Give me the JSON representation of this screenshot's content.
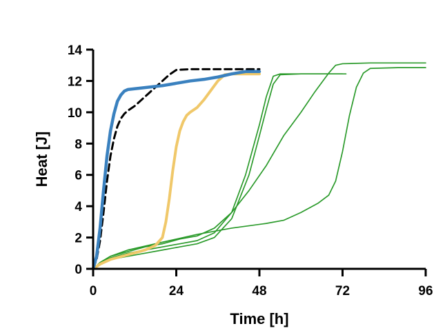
{
  "chart_data": {
    "type": "line",
    "title": "",
    "xlabel": "Time [h]",
    "ylabel": "Heat [J]",
    "xlim": [
      0,
      96
    ],
    "ylim": [
      0,
      14
    ],
    "xticks": [
      0,
      24,
      48,
      72,
      96
    ],
    "yticks": [
      0,
      2,
      4,
      6,
      8,
      10,
      12,
      14
    ],
    "grid": false,
    "legend": "none",
    "series": [
      {
        "color": "#000000",
        "style": "dashed",
        "points": [
          [
            0,
            0
          ],
          [
            1,
            0.6
          ],
          [
            2,
            1.8
          ],
          [
            3,
            3.6
          ],
          [
            4,
            5.6
          ],
          [
            5,
            7.2
          ],
          [
            6,
            8.3
          ],
          [
            7,
            9.1
          ],
          [
            8,
            9.6
          ],
          [
            9,
            9.9
          ],
          [
            10,
            10.1
          ],
          [
            12,
            10.4
          ],
          [
            14,
            10.8
          ],
          [
            16,
            11.2
          ],
          [
            18,
            11.6
          ],
          [
            20,
            12.0
          ],
          [
            22,
            12.4
          ],
          [
            24,
            12.7
          ],
          [
            28,
            12.75
          ],
          [
            36,
            12.75
          ],
          [
            44,
            12.75
          ],
          [
            48,
            12.75
          ]
        ]
      },
      {
        "color": "#3a81bf",
        "style": "solid",
        "points": [
          [
            0,
            0
          ],
          [
            1,
            0.8
          ],
          [
            2,
            2.6
          ],
          [
            3,
            5.0
          ],
          [
            4,
            7.2
          ],
          [
            5,
            8.8
          ],
          [
            6,
            9.9
          ],
          [
            7,
            10.7
          ],
          [
            8,
            11.1
          ],
          [
            9,
            11.35
          ],
          [
            10,
            11.45
          ],
          [
            12,
            11.5
          ],
          [
            16,
            11.6
          ],
          [
            20,
            11.7
          ],
          [
            24,
            11.85
          ],
          [
            28,
            12.0
          ],
          [
            32,
            12.1
          ],
          [
            36,
            12.25
          ],
          [
            40,
            12.45
          ],
          [
            44,
            12.6
          ],
          [
            48,
            12.6
          ]
        ]
      },
      {
        "color": "#f0c86a",
        "style": "solid",
        "points": [
          [
            0,
            0
          ],
          [
            2,
            0.3
          ],
          [
            5,
            0.6
          ],
          [
            10,
            0.9
          ],
          [
            15,
            1.2
          ],
          [
            18,
            1.5
          ],
          [
            20,
            2.0
          ],
          [
            21,
            3.0
          ],
          [
            22,
            4.5
          ],
          [
            23,
            6.3
          ],
          [
            24,
            7.8
          ],
          [
            25,
            8.8
          ],
          [
            26,
            9.4
          ],
          [
            27,
            9.8
          ],
          [
            28,
            10.0
          ],
          [
            30,
            10.3
          ],
          [
            32,
            10.8
          ],
          [
            34,
            11.4
          ],
          [
            36,
            12.0
          ],
          [
            38,
            12.4
          ],
          [
            40,
            12.45
          ],
          [
            48,
            12.45
          ]
        ]
      },
      {
        "color": "#2a9a2a",
        "style": "solid",
        "points": [
          [
            0,
            0
          ],
          [
            2,
            0.3
          ],
          [
            5,
            0.6
          ],
          [
            10,
            0.8
          ],
          [
            15,
            1.0
          ],
          [
            20,
            1.2
          ],
          [
            25,
            1.4
          ],
          [
            30,
            1.6
          ],
          [
            35,
            2.0
          ],
          [
            40,
            3.2
          ],
          [
            45,
            6.0
          ],
          [
            48,
            8.5
          ],
          [
            50,
            10.2
          ],
          [
            52,
            11.8
          ],
          [
            54,
            12.4
          ],
          [
            60,
            12.45
          ],
          [
            68,
            12.45
          ],
          [
            73,
            12.45
          ]
        ]
      },
      {
        "color": "#2a9a2a",
        "style": "solid",
        "points": [
          [
            0,
            0
          ],
          [
            2,
            0.4
          ],
          [
            5,
            0.7
          ],
          [
            10,
            1.0
          ],
          [
            15,
            1.2
          ],
          [
            20,
            1.4
          ],
          [
            25,
            1.6
          ],
          [
            30,
            1.8
          ],
          [
            35,
            2.3
          ],
          [
            40,
            3.6
          ],
          [
            44,
            6.0
          ],
          [
            48,
            9.2
          ],
          [
            50,
            11.0
          ],
          [
            52,
            12.3
          ],
          [
            54,
            12.45
          ],
          [
            60,
            12.45
          ],
          [
            68,
            12.45
          ],
          [
            72,
            12.45
          ]
        ]
      },
      {
        "color": "#2a9a2a",
        "style": "solid",
        "points": [
          [
            0,
            0
          ],
          [
            2,
            0.4
          ],
          [
            5,
            0.8
          ],
          [
            10,
            1.1
          ],
          [
            15,
            1.4
          ],
          [
            20,
            1.6
          ],
          [
            25,
            1.9
          ],
          [
            30,
            2.1
          ],
          [
            35,
            2.6
          ],
          [
            40,
            3.6
          ],
          [
            45,
            5.0
          ],
          [
            50,
            6.6
          ],
          [
            55,
            8.5
          ],
          [
            60,
            10.0
          ],
          [
            64,
            11.3
          ],
          [
            68,
            12.5
          ],
          [
            70,
            13.0
          ],
          [
            72,
            13.1
          ],
          [
            80,
            13.15
          ],
          [
            88,
            13.15
          ],
          [
            96,
            13.15
          ]
        ]
      },
      {
        "color": "#2a9a2a",
        "style": "solid",
        "points": [
          [
            0,
            0
          ],
          [
            2,
            0.4
          ],
          [
            5,
            0.8
          ],
          [
            10,
            1.2
          ],
          [
            20,
            1.7
          ],
          [
            30,
            2.2
          ],
          [
            40,
            2.6
          ],
          [
            50,
            2.9
          ],
          [
            55,
            3.1
          ],
          [
            60,
            3.6
          ],
          [
            65,
            4.2
          ],
          [
            68,
            4.7
          ],
          [
            70,
            5.6
          ],
          [
            72,
            7.5
          ],
          [
            74,
            9.8
          ],
          [
            76,
            11.6
          ],
          [
            78,
            12.5
          ],
          [
            80,
            12.8
          ],
          [
            88,
            12.85
          ],
          [
            96,
            12.85
          ]
        ]
      }
    ]
  }
}
